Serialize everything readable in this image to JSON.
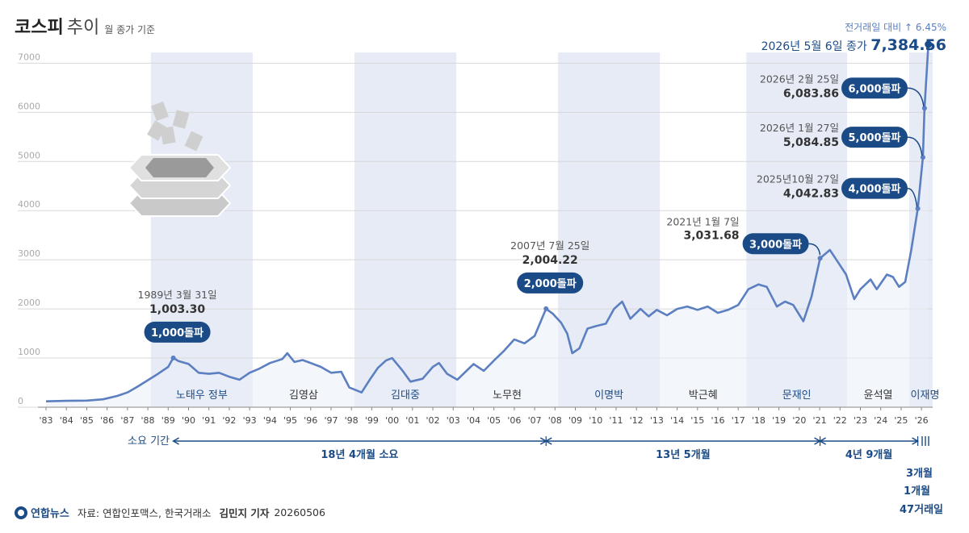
{
  "header": {
    "title_main": "코스피",
    "title_sub": "추이",
    "unit": "월 종가 기준"
  },
  "footer": {
    "logo": "연합뉴스",
    "source": "자료: 연합인포맥스, 한국거래소",
    "reporter": "김민지 기자",
    "date": "20260506"
  },
  "colors": {
    "line": "#5b7fc0",
    "badge": "#1b4b86",
    "band": "#e6ebf6",
    "grid": "#d8d8d8",
    "text": "#333333",
    "highlight": "#1b4b86"
  },
  "chart_data": {
    "type": "line",
    "xlim": [
      1983,
      2026.55
    ],
    "ylim": [
      0,
      7384.56
    ],
    "y_ticks": [
      0,
      1000,
      2000,
      3000,
      4000,
      5000,
      6000,
      7000
    ],
    "y_tick_labels": [
      "0",
      "1000",
      "2000",
      "3000",
      "4000",
      "5000",
      "6000",
      "7000"
    ],
    "x_ticks": [
      {
        "label": "'83",
        "x": 1983
      },
      {
        "label": "'84",
        "x": 1984
      },
      {
        "label": "'85",
        "x": 1985
      },
      {
        "label": "'86",
        "x": 1986
      },
      {
        "label": "'87",
        "x": 1987
      },
      {
        "label": "'88",
        "x": 1988
      },
      {
        "label": "'89",
        "x": 1989
      },
      {
        "label": "'90",
        "x": 1990
      },
      {
        "label": "'91",
        "x": 1991
      },
      {
        "label": "'92",
        "x": 1992
      },
      {
        "label": "'93",
        "x": 1993
      },
      {
        "label": "'94",
        "x": 1994
      },
      {
        "label": "'95",
        "x": 1995
      },
      {
        "label": "'96",
        "x": 1996
      },
      {
        "label": "'97",
        "x": 1997
      },
      {
        "label": "'98",
        "x": 1998
      },
      {
        "label": "'99",
        "x": 1999
      },
      {
        "label": "'00",
        "x": 2000
      },
      {
        "label": "'01",
        "x": 2001
      },
      {
        "label": "'02",
        "x": 2002
      },
      {
        "label": "'03",
        "x": 2003
      },
      {
        "label": "'04",
        "x": 2004
      },
      {
        "label": "'05",
        "x": 2005
      },
      {
        "label": "'06",
        "x": 2006
      },
      {
        "label": "'07",
        "x": 2007
      },
      {
        "label": "'08",
        "x": 2008
      },
      {
        "label": "'09",
        "x": 2009
      },
      {
        "label": "'10",
        "x": 2010
      },
      {
        "label": "'11",
        "x": 2011
      },
      {
        "label": "'12",
        "x": 2012
      },
      {
        "label": "'13",
        "x": 2013
      },
      {
        "label": "'14",
        "x": 2014
      },
      {
        "label": "'15",
        "x": 2015
      },
      {
        "label": "'16",
        "x": 2016
      },
      {
        "label": "'17",
        "x": 2017
      },
      {
        "label": "'18",
        "x": 2018
      },
      {
        "label": "'19",
        "x": 2019
      },
      {
        "label": "'20",
        "x": 2020
      },
      {
        "label": "'21",
        "x": 2021
      },
      {
        "label": "'22",
        "x": 2022
      },
      {
        "label": "'23",
        "x": 2023
      },
      {
        "label": "'24",
        "x": 2024
      },
      {
        "label": "'25",
        "x": 2025
      },
      {
        "label": "'26",
        "x": 2026
      }
    ],
    "series": [
      {
        "points": [
          [
            1983.0,
            120
          ],
          [
            1984.0,
            130
          ],
          [
            1985.0,
            135
          ],
          [
            1985.8,
            160
          ],
          [
            1986.5,
            230
          ],
          [
            1987.0,
            300
          ],
          [
            1987.5,
            420
          ],
          [
            1988.0,
            550
          ],
          [
            1988.5,
            680
          ],
          [
            1989.0,
            820
          ],
          [
            1989.25,
            1003.3
          ],
          [
            1989.5,
            940
          ],
          [
            1990.0,
            880
          ],
          [
            1990.5,
            700
          ],
          [
            1991.0,
            680
          ],
          [
            1991.5,
            700
          ],
          [
            1992.0,
            620
          ],
          [
            1992.5,
            560
          ],
          [
            1993.0,
            700
          ],
          [
            1993.5,
            790
          ],
          [
            1994.0,
            900
          ],
          [
            1994.6,
            980
          ],
          [
            1994.85,
            1100
          ],
          [
            1995.2,
            920
          ],
          [
            1995.6,
            960
          ],
          [
            1996.0,
            900
          ],
          [
            1996.5,
            820
          ],
          [
            1997.0,
            700
          ],
          [
            1997.5,
            720
          ],
          [
            1997.9,
            400
          ],
          [
            1998.5,
            300
          ],
          [
            1998.9,
            560
          ],
          [
            1999.3,
            800
          ],
          [
            1999.7,
            950
          ],
          [
            2000.0,
            1000
          ],
          [
            2000.5,
            750
          ],
          [
            2000.9,
            520
          ],
          [
            2001.5,
            580
          ],
          [
            2002.0,
            820
          ],
          [
            2002.3,
            900
          ],
          [
            2002.7,
            680
          ],
          [
            2003.2,
            560
          ],
          [
            2003.7,
            760
          ],
          [
            2004.0,
            880
          ],
          [
            2004.5,
            740
          ],
          [
            2005.0,
            950
          ],
          [
            2005.5,
            1150
          ],
          [
            2006.0,
            1380
          ],
          [
            2006.5,
            1300
          ],
          [
            2007.0,
            1450
          ],
          [
            2007.56,
            2004.22
          ],
          [
            2007.9,
            1900
          ],
          [
            2008.3,
            1720
          ],
          [
            2008.6,
            1500
          ],
          [
            2008.85,
            1100
          ],
          [
            2009.2,
            1200
          ],
          [
            2009.6,
            1600
          ],
          [
            2010.0,
            1650
          ],
          [
            2010.5,
            1700
          ],
          [
            2010.9,
            2000
          ],
          [
            2011.3,
            2150
          ],
          [
            2011.7,
            1800
          ],
          [
            2012.2,
            2000
          ],
          [
            2012.6,
            1850
          ],
          [
            2013.0,
            1980
          ],
          [
            2013.5,
            1870
          ],
          [
            2014.0,
            2000
          ],
          [
            2014.5,
            2050
          ],
          [
            2015.0,
            1980
          ],
          [
            2015.5,
            2050
          ],
          [
            2016.0,
            1920
          ],
          [
            2016.5,
            1980
          ],
          [
            2017.0,
            2080
          ],
          [
            2017.5,
            2400
          ],
          [
            2018.0,
            2500
          ],
          [
            2018.4,
            2450
          ],
          [
            2018.9,
            2050
          ],
          [
            2019.3,
            2150
          ],
          [
            2019.7,
            2080
          ],
          [
            2020.2,
            1750
          ],
          [
            2020.6,
            2250
          ],
          [
            2021.02,
            3031.68
          ],
          [
            2021.5,
            3200
          ],
          [
            2021.9,
            2950
          ],
          [
            2022.3,
            2700
          ],
          [
            2022.7,
            2200
          ],
          [
            2023.0,
            2400
          ],
          [
            2023.5,
            2600
          ],
          [
            2023.8,
            2400
          ],
          [
            2024.3,
            2700
          ],
          [
            2024.6,
            2650
          ],
          [
            2024.9,
            2450
          ],
          [
            2025.2,
            2550
          ],
          [
            2025.5,
            3200
          ],
          [
            2025.82,
            4042.83
          ],
          [
            2026.07,
            5084.85
          ],
          [
            2026.15,
            6083.86
          ],
          [
            2026.34,
            7384.56
          ]
        ]
      }
    ],
    "admin_bands": [
      {
        "start": 1988.15,
        "end": 1993.15,
        "label": "노태우 정부",
        "shaded": true
      },
      {
        "start": 1993.15,
        "end": 1998.15,
        "label": "김영삼",
        "shaded": false
      },
      {
        "start": 1998.15,
        "end": 2003.15,
        "label": "김대중",
        "shaded": true
      },
      {
        "start": 2003.15,
        "end": 2008.15,
        "label": "노무현",
        "shaded": false
      },
      {
        "start": 2008.15,
        "end": 2013.15,
        "label": "이명박",
        "shaded": true
      },
      {
        "start": 2013.15,
        "end": 2017.4,
        "label": "박근혜",
        "shaded": false
      },
      {
        "start": 2017.4,
        "end": 2022.35,
        "label": "문재인",
        "shaded": true
      },
      {
        "start": 2022.35,
        "end": 2025.4,
        "label": "윤석열",
        "shaded": false
      },
      {
        "start": 2025.4,
        "end": 2026.55,
        "label": "이재명",
        "shaded": true
      }
    ],
    "milestones": [
      {
        "id": "m1000",
        "x": 1989.25,
        "y": 1003.3,
        "date": "1989년 3월 31일",
        "value": "1,003.30",
        "badge": "1,000돌파",
        "badge_side": "below"
      },
      {
        "id": "m2000",
        "x": 2007.56,
        "y": 2004.22,
        "date": "2007년 7월 25일",
        "value": "2,004.22",
        "badge": "2,000돌파",
        "badge_side": "below"
      },
      {
        "id": "m3000",
        "x": 2021.02,
        "y": 3031.68,
        "date": "2021년 1월 7일",
        "value": "3,031.68",
        "badge": "3,000돌파",
        "badge_side": "right"
      },
      {
        "id": "m4000",
        "x": 2025.82,
        "y": 4042.83,
        "date": "2025년10월 27일",
        "value": "4,042.83",
        "badge": "4,000돌파",
        "badge_side": "left"
      },
      {
        "id": "m5000",
        "x": 2026.07,
        "y": 5084.85,
        "date": "2026년 1월 27일",
        "value": "5,084.85",
        "badge": "5,000돌파",
        "badge_side": "left"
      },
      {
        "id": "m6000",
        "x": 2026.15,
        "y": 6083.86,
        "date": "2026년 2월 25일",
        "value": "6,083.86",
        "badge": "6,000돌파",
        "badge_side": "left"
      }
    ],
    "latest": {
      "change": "전거래일 대비 ↑ 6.45%",
      "date": "2026년 5월 6일 종가",
      "value": "7,384.56"
    },
    "durations": {
      "row_label": "소요 기간",
      "segments": [
        {
          "start": 1989.25,
          "end": 2007.56,
          "label": "18년 4개월 소요"
        },
        {
          "start": 2007.56,
          "end": 2021.02,
          "label": "13년 5개월"
        },
        {
          "start": 2021.02,
          "end": 2025.82,
          "label": "4년 9개월"
        }
      ],
      "short_labels": [
        "3개월",
        "1개월",
        "47거래일"
      ]
    }
  }
}
